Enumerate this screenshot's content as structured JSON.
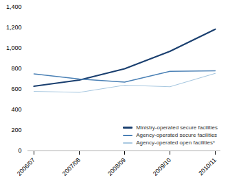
{
  "chart_data": {
    "type": "line",
    "categories": [
      "2006/07",
      "2007/08",
      "2008/09",
      "2009/10",
      "2010/11"
    ],
    "series": [
      {
        "name": "Ministry-operated secure facilities",
        "color": "#1a3f6f",
        "values": [
          630,
          690,
          800,
          970,
          1185
        ]
      },
      {
        "name": "Agency-operated secure facilities",
        "color": "#4a80b5",
        "values": [
          750,
          700,
          670,
          775,
          780
        ]
      },
      {
        "name": "Agency-operated open facilities*",
        "color": "#a8c8e0",
        "values": [
          580,
          570,
          640,
          625,
          755
        ]
      }
    ],
    "ylim": [
      0,
      1400
    ],
    "yticks": [
      0,
      200,
      400,
      600,
      800,
      {
        "value": 1000,
        "label": "1,000"
      },
      {
        "value": 1200,
        "label": "1,200"
      },
      {
        "value": 1400,
        "label": "1,400"
      }
    ],
    "grid": false,
    "legend": "lower right"
  }
}
